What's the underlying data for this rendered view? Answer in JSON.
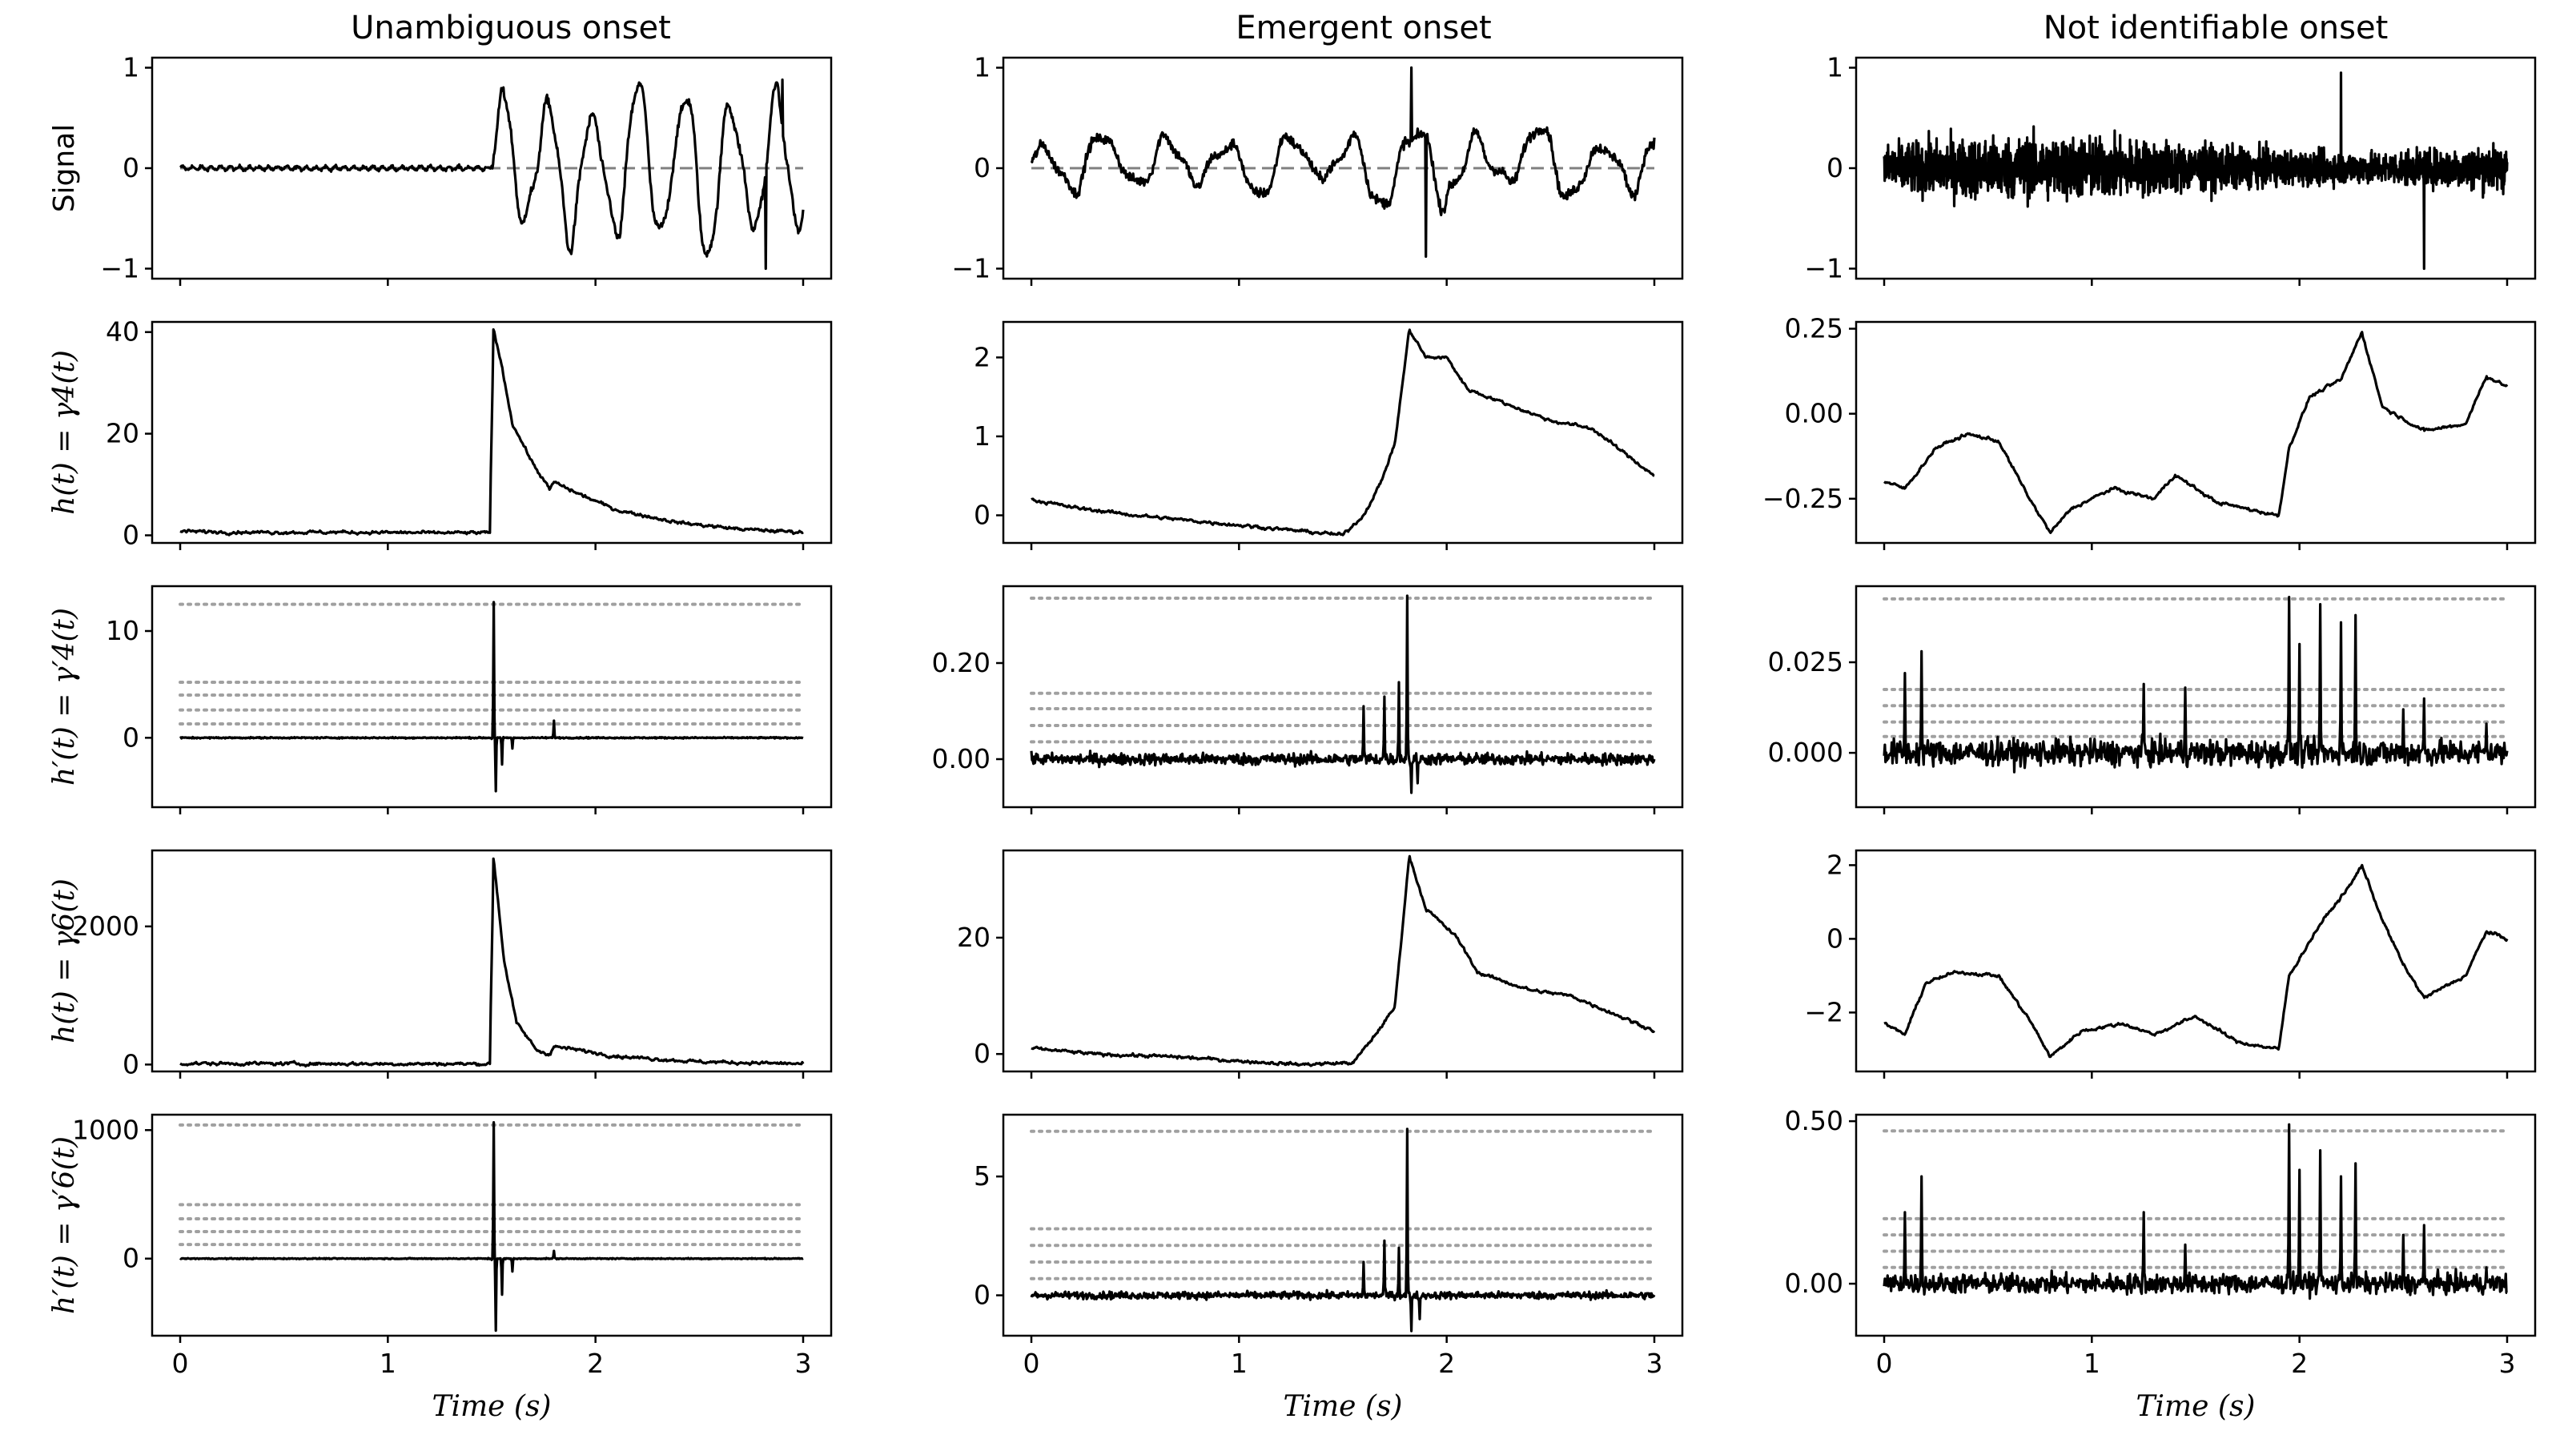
{
  "figure": {
    "column_titles": [
      "Unambiguous onset",
      "Emergent onset",
      "Not identifiable onset"
    ],
    "row_ylabels": [
      "Signal",
      "h(t) = γ4(t)",
      "h′(t) = γ′4(t)",
      "h(t) = γ6(t)",
      "h′(t) = γ′6(t)"
    ],
    "xlabel": "Time (s)",
    "xticks": [
      0,
      1,
      2,
      3
    ]
  },
  "colors": {
    "line": "#000000",
    "threshold": "#a0a0a0",
    "zero_dashed": "#808080",
    "frame": "#000000"
  },
  "chart_data": [
    {
      "type": "line",
      "column": "Unambiguous onset",
      "ylabel": "Signal",
      "xlim": [
        0,
        3
      ],
      "ylim": [
        -1.1,
        1.1
      ],
      "yticks": [
        -1,
        0,
        1
      ],
      "onset": 1.5,
      "baseline": 0.0,
      "pre_noise": 0.03,
      "post_amp": 0.85,
      "extremes": {
        "max": 0.88,
        "min": -1.0
      },
      "zero_dashed": true
    },
    {
      "type": "line",
      "column": "Emergent onset",
      "ylabel": "Signal",
      "xlim": [
        0,
        3
      ],
      "ylim": [
        -1.1,
        1.1
      ],
      "yticks": [
        -1,
        0,
        1
      ],
      "onset": 0.0,
      "baseline": 0.1,
      "post_amp": 0.55,
      "extremes": {
        "max": 1.0,
        "min": -0.88
      },
      "zero_dashed": true
    },
    {
      "type": "line",
      "column": "Not identifiable onset",
      "ylabel": "Signal",
      "xlim": [
        0,
        3
      ],
      "ylim": [
        -1.1,
        1.1
      ],
      "yticks": [
        -1,
        0,
        1
      ],
      "noise_amp": 0.55,
      "extremes": {
        "max": 0.95,
        "min": -1.0
      },
      "zero_dashed": false
    },
    {
      "type": "line",
      "column": "Unambiguous onset",
      "ylabel": "h(t) = γ4(t)",
      "xlim": [
        0,
        3
      ],
      "ylim": [
        -1.5,
        42
      ],
      "yticks": [
        0,
        20,
        40
      ],
      "points": [
        [
          0,
          0.8
        ],
        [
          0.3,
          0.6
        ],
        [
          0.8,
          0.6
        ],
        [
          1.2,
          0.5
        ],
        [
          1.49,
          0.5
        ],
        [
          1.51,
          40.5
        ],
        [
          1.55,
          33
        ],
        [
          1.6,
          22
        ],
        [
          1.7,
          14
        ],
        [
          1.78,
          9
        ],
        [
          1.8,
          10.5
        ],
        [
          1.9,
          8.5
        ],
        [
          2.1,
          5
        ],
        [
          2.4,
          2.5
        ],
        [
          2.7,
          1.2
        ],
        [
          3.0,
          0.6
        ]
      ]
    },
    {
      "type": "line",
      "column": "Emergent onset",
      "ylabel": "h(t) = γ4(t)",
      "xlim": [
        0,
        3
      ],
      "ylim": [
        -0.35,
        2.45
      ],
      "yticks": [
        0,
        1,
        2
      ],
      "points": [
        [
          0,
          0.2
        ],
        [
          0.2,
          0.1
        ],
        [
          0.5,
          0.0
        ],
        [
          0.9,
          -0.1
        ],
        [
          1.3,
          -0.2
        ],
        [
          1.5,
          -0.25
        ],
        [
          1.6,
          0.0
        ],
        [
          1.68,
          0.4
        ],
        [
          1.75,
          0.9
        ],
        [
          1.82,
          2.35
        ],
        [
          1.9,
          2.0
        ],
        [
          2.0,
          2.0
        ],
        [
          2.1,
          1.6
        ],
        [
          2.3,
          1.4
        ],
        [
          2.5,
          1.2
        ],
        [
          2.7,
          1.1
        ],
        [
          2.9,
          0.7
        ],
        [
          3.0,
          0.5
        ]
      ]
    },
    {
      "type": "line",
      "column": "Not identifiable onset",
      "ylabel": "h(t) = γ4(t)",
      "xlim": [
        0,
        3
      ],
      "ylim": [
        -0.38,
        0.27
      ],
      "yticks": [
        -0.25,
        0.0,
        0.25
      ],
      "points": [
        [
          0,
          -0.2
        ],
        [
          0.1,
          -0.22
        ],
        [
          0.25,
          -0.1
        ],
        [
          0.4,
          -0.06
        ],
        [
          0.55,
          -0.08
        ],
        [
          0.7,
          -0.25
        ],
        [
          0.8,
          -0.35
        ],
        [
          0.9,
          -0.28
        ],
        [
          1.1,
          -0.22
        ],
        [
          1.3,
          -0.25
        ],
        [
          1.4,
          -0.18
        ],
        [
          1.6,
          -0.26
        ],
        [
          1.9,
          -0.3
        ],
        [
          1.95,
          -0.1
        ],
        [
          2.05,
          0.05
        ],
        [
          2.2,
          0.1
        ],
        [
          2.3,
          0.24
        ],
        [
          2.4,
          0.02
        ],
        [
          2.6,
          -0.05
        ],
        [
          2.8,
          -0.03
        ],
        [
          2.9,
          0.11
        ],
        [
          3.0,
          0.08
        ]
      ]
    },
    {
      "type": "line",
      "column": "Unambiguous onset",
      "ylabel": "h′(t) = γ′4(t)",
      "xlim": [
        0,
        3
      ],
      "ylim": [
        -6.5,
        14.2
      ],
      "yticks": [
        0,
        10
      ],
      "thresholds": [
        12.5,
        5.2,
        4.0,
        2.6,
        1.3
      ],
      "noise": 0.06,
      "spikes": [
        [
          1.5,
          -0.1
        ],
        [
          1.51,
          12.7
        ],
        [
          1.52,
          -5.0
        ],
        [
          1.55,
          -2.5
        ],
        [
          1.6,
          -1.0
        ],
        [
          1.8,
          1.6
        ]
      ]
    },
    {
      "type": "line",
      "column": "Emergent onset",
      "ylabel": "h′(t) = γ′4(t)",
      "xlim": [
        0,
        3
      ],
      "ylim": [
        -0.1,
        0.36
      ],
      "yticks": [
        0.0,
        0.2
      ],
      "thresholds": [
        0.335,
        0.137,
        0.105,
        0.07,
        0.036
      ],
      "noise": 0.012,
      "spikes": [
        [
          1.6,
          0.11
        ],
        [
          1.7,
          0.13
        ],
        [
          1.77,
          0.16
        ],
        [
          1.81,
          0.34
        ],
        [
          1.83,
          -0.07
        ],
        [
          1.86,
          -0.05
        ]
      ]
    },
    {
      "type": "line",
      "column": "Not identifiable onset",
      "ylabel": "h′(t) = γ′4(t)",
      "xlim": [
        0,
        3
      ],
      "ylim": [
        -0.015,
        0.046
      ],
      "yticks": [
        0.0,
        0.025
      ],
      "thresholds": [
        0.0425,
        0.0175,
        0.013,
        0.0085,
        0.0045
      ],
      "noise": 0.0035,
      "spikes": [
        [
          0.1,
          0.022
        ],
        [
          0.18,
          0.028
        ],
        [
          1.25,
          0.019
        ],
        [
          1.45,
          0.018
        ],
        [
          1.95,
          0.043
        ],
        [
          2.0,
          0.03
        ],
        [
          2.1,
          0.041
        ],
        [
          2.2,
          0.036
        ],
        [
          2.27,
          0.038
        ],
        [
          2.5,
          0.012
        ],
        [
          2.6,
          0.015
        ],
        [
          2.9,
          0.008
        ]
      ]
    },
    {
      "type": "line",
      "column": "Unambiguous onset",
      "ylabel": "h(t) = γ6(t)",
      "xlim": [
        0,
        3
      ],
      "ylim": [
        -100,
        3100
      ],
      "yticks": [
        0,
        2000
      ],
      "points": [
        [
          0,
          15
        ],
        [
          1.0,
          10
        ],
        [
          1.49,
          10
        ],
        [
          1.51,
          2980
        ],
        [
          1.56,
          1500
        ],
        [
          1.62,
          600
        ],
        [
          1.72,
          200
        ],
        [
          1.78,
          150
        ],
        [
          1.8,
          260
        ],
        [
          1.9,
          220
        ],
        [
          2.1,
          120
        ],
        [
          2.5,
          40
        ],
        [
          3.0,
          10
        ]
      ]
    },
    {
      "type": "line",
      "column": "Emergent onset",
      "ylabel": "h(t) = γ6(t)",
      "xlim": [
        0,
        3
      ],
      "ylim": [
        -3,
        35
      ],
      "yticks": [
        0,
        20
      ],
      "points": [
        [
          0,
          1
        ],
        [
          0.3,
          0
        ],
        [
          0.7,
          -0.5
        ],
        [
          1.0,
          -1.2
        ],
        [
          1.3,
          -1.8
        ],
        [
          1.55,
          -1.5
        ],
        [
          1.65,
          3
        ],
        [
          1.75,
          8
        ],
        [
          1.82,
          34
        ],
        [
          1.9,
          25
        ],
        [
          2.05,
          20
        ],
        [
          2.15,
          14
        ],
        [
          2.4,
          11
        ],
        [
          2.6,
          10
        ],
        [
          2.8,
          7
        ],
        [
          3.0,
          4
        ]
      ]
    },
    {
      "type": "line",
      "column": "Not identifiable onset",
      "ylabel": "h(t) = γ6(t)",
      "xlim": [
        0,
        3
      ],
      "ylim": [
        -3.6,
        2.4
      ],
      "yticks": [
        -2,
        0,
        2
      ],
      "points": [
        [
          0,
          -2.3
        ],
        [
          0.1,
          -2.6
        ],
        [
          0.2,
          -1.2
        ],
        [
          0.35,
          -0.9
        ],
        [
          0.55,
          -1.0
        ],
        [
          0.7,
          -2.2
        ],
        [
          0.8,
          -3.2
        ],
        [
          0.95,
          -2.5
        ],
        [
          1.15,
          -2.3
        ],
        [
          1.3,
          -2.6
        ],
        [
          1.5,
          -2.1
        ],
        [
          1.7,
          -2.8
        ],
        [
          1.9,
          -3.0
        ],
        [
          1.95,
          -1.0
        ],
        [
          2.1,
          0.4
        ],
        [
          2.25,
          1.5
        ],
        [
          2.3,
          2.0
        ],
        [
          2.4,
          0.5
        ],
        [
          2.5,
          -0.7
        ],
        [
          2.6,
          -1.6
        ],
        [
          2.8,
          -1.0
        ],
        [
          2.9,
          0.2
        ],
        [
          3.0,
          0.0
        ]
      ]
    },
    {
      "type": "line",
      "column": "Unambiguous onset",
      "ylabel": "h′(t) = γ′6(t)",
      "xlim": [
        0,
        3
      ],
      "ylim": [
        -600,
        1120
      ],
      "yticks": [
        0,
        1000
      ],
      "thresholds": [
        1040,
        420,
        310,
        210,
        110
      ],
      "noise": 4,
      "spikes": [
        [
          1.5,
          -10
        ],
        [
          1.51,
          1060
        ],
        [
          1.52,
          -560
        ],
        [
          1.55,
          -280
        ],
        [
          1.6,
          -100
        ],
        [
          1.8,
          60
        ]
      ]
    },
    {
      "type": "line",
      "column": "Emergent onset",
      "ylabel": "h′(t) = γ′6(t)",
      "xlim": [
        0,
        3
      ],
      "ylim": [
        -1.7,
        7.6
      ],
      "yticks": [
        0,
        5
      ],
      "thresholds": [
        6.9,
        2.8,
        2.1,
        1.4,
        0.7
      ],
      "noise": 0.15,
      "spikes": [
        [
          1.6,
          1.4
        ],
        [
          1.7,
          2.3
        ],
        [
          1.77,
          2.0
        ],
        [
          1.81,
          7.0
        ],
        [
          1.83,
          -1.5
        ],
        [
          1.87,
          -1.0
        ]
      ]
    },
    {
      "type": "line",
      "column": "Not identifiable onset",
      "ylabel": "h′(t) = γ′6(t)",
      "xlim": [
        0,
        3
      ],
      "ylim": [
        -0.16,
        0.52
      ],
      "yticks": [
        0.0,
        0.5
      ],
      "thresholds": [
        0.47,
        0.2,
        0.15,
        0.1,
        0.05
      ],
      "noise": 0.03,
      "spikes": [
        [
          0.1,
          0.22
        ],
        [
          0.18,
          0.33
        ],
        [
          1.25,
          0.22
        ],
        [
          1.45,
          0.12
        ],
        [
          1.95,
          0.49
        ],
        [
          2.0,
          0.35
        ],
        [
          2.1,
          0.41
        ],
        [
          2.2,
          0.33
        ],
        [
          2.27,
          0.37
        ],
        [
          2.5,
          0.15
        ],
        [
          2.6,
          0.18
        ],
        [
          2.9,
          0.05
        ]
      ]
    }
  ]
}
